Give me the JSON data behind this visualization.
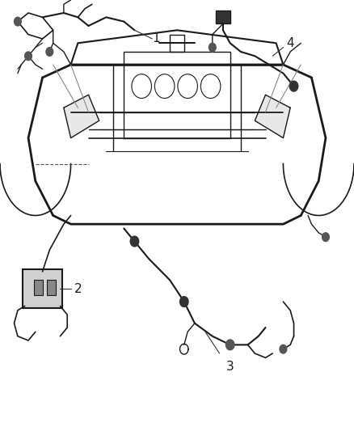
{
  "title": "",
  "background_color": "#ffffff",
  "line_color": "#1a1a1a",
  "fig_width": 4.38,
  "fig_height": 5.33,
  "dpi": 100,
  "label_fontsize": 11,
  "label_color": "#1a1a1a"
}
